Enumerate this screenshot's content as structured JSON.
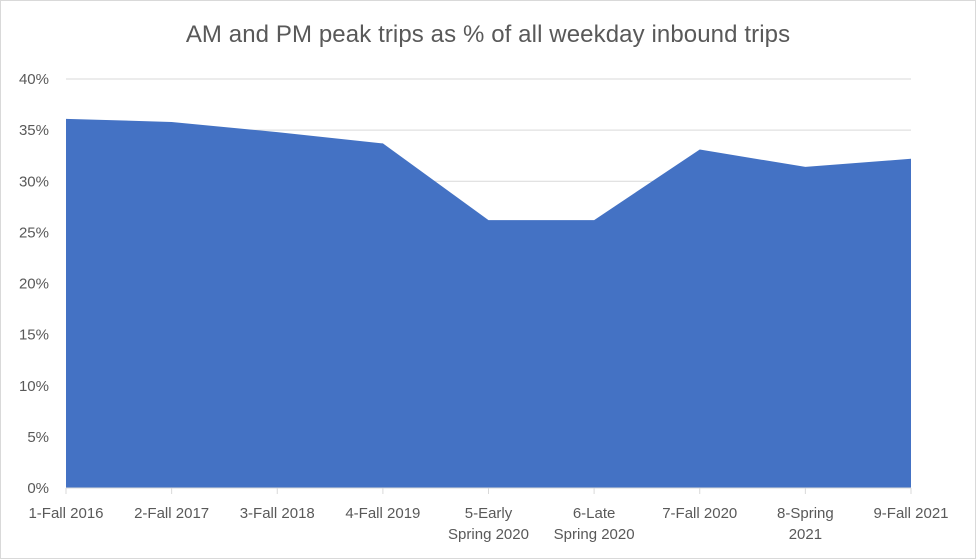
{
  "chart_data": {
    "type": "area",
    "title": "AM and PM peak trips as % of all weekday inbound trips",
    "xlabel": "",
    "ylabel": "",
    "categories": [
      "1-Fall 2016",
      "2-Fall 2017",
      "3-Fall 2018",
      "4-Fall 2019",
      "5-Early Spring 2020",
      "6-Late Spring 2020",
      "7-Fall 2020",
      "8-Spring 2021",
      "9-Fall 2021"
    ],
    "category_lines": [
      [
        "1-Fall 2016"
      ],
      [
        "2-Fall 2017"
      ],
      [
        "3-Fall 2018"
      ],
      [
        "4-Fall 2019"
      ],
      [
        "5-Early",
        "Spring 2020"
      ],
      [
        "6-Late",
        "Spring 2020"
      ],
      [
        "7-Fall 2020"
      ],
      [
        "8-Spring",
        "2021"
      ],
      [
        "9-Fall 2021"
      ]
    ],
    "values": [
      36.1,
      35.8,
      34.8,
      33.7,
      26.2,
      26.2,
      33.1,
      31.4,
      32.2
    ],
    "ylim": [
      0,
      40
    ],
    "yticks": [
      0,
      5,
      10,
      15,
      20,
      25,
      30,
      35,
      40
    ],
    "ytick_labels": [
      "0%",
      "5%",
      "10%",
      "15%",
      "20%",
      "25%",
      "30%",
      "35%",
      "40%"
    ],
    "grid": true,
    "legend": "none",
    "colors": {
      "area": "#4472c4",
      "grid": "#d9d9d9",
      "text": "#595959"
    }
  }
}
